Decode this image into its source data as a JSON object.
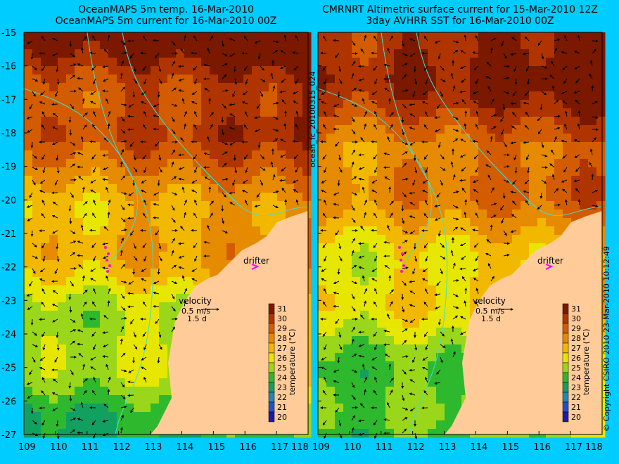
{
  "left_panel": {
    "title_line1": "OceanMAPS 5m temp. 16-Mar-2010",
    "title_line2": "OceanMAPS 5m current for 16-Mar-2010 00Z"
  },
  "right_panel": {
    "title_line1": "CMRNRT Altimetric surface current for 15-Mar-2010 12Z",
    "title_line2": "3day AVHRR SST for 16-Mar-2010 00Z"
  },
  "side_label": "ocean_fc_20100315_024",
  "copyright": "© Copyright CSIRO 2010   23-Mar-2010 10:12:49",
  "y_ticks": [
    "-15",
    "-16",
    "-17",
    "-18",
    "-19",
    "-20",
    "-21",
    "-22",
    "-23",
    "-24",
    "-25",
    "-26",
    "-27"
  ],
  "x_ticks": [
    "109",
    "110",
    "111",
    "112",
    "113",
    "114",
    "115",
    "116",
    "117",
    "118"
  ],
  "drifter_label": "drifter",
  "velocity_label": "velocity",
  "velocity_scale": "0.5 m/s",
  "velocity_time": "1.5 d",
  "colorbar": {
    "label": "temperature (°C)",
    "ticks": [
      "31",
      "30",
      "29",
      "28",
      "27",
      "26",
      "25",
      "24",
      "23",
      "22",
      "21",
      "20"
    ],
    "colors": [
      "#7a1800",
      "#b03400",
      "#d45c00",
      "#e68a00",
      "#f2b800",
      "#e6e600",
      "#9ad61a",
      "#2eb82e",
      "#12a060",
      "#1f86b8",
      "#2050cc",
      "#1a1ab0"
    ]
  },
  "colors": {
    "background": "#00ccff",
    "land": "#ffcc99",
    "drifter": "#ff00ff",
    "bathymetry": "#40e0d0"
  }
}
